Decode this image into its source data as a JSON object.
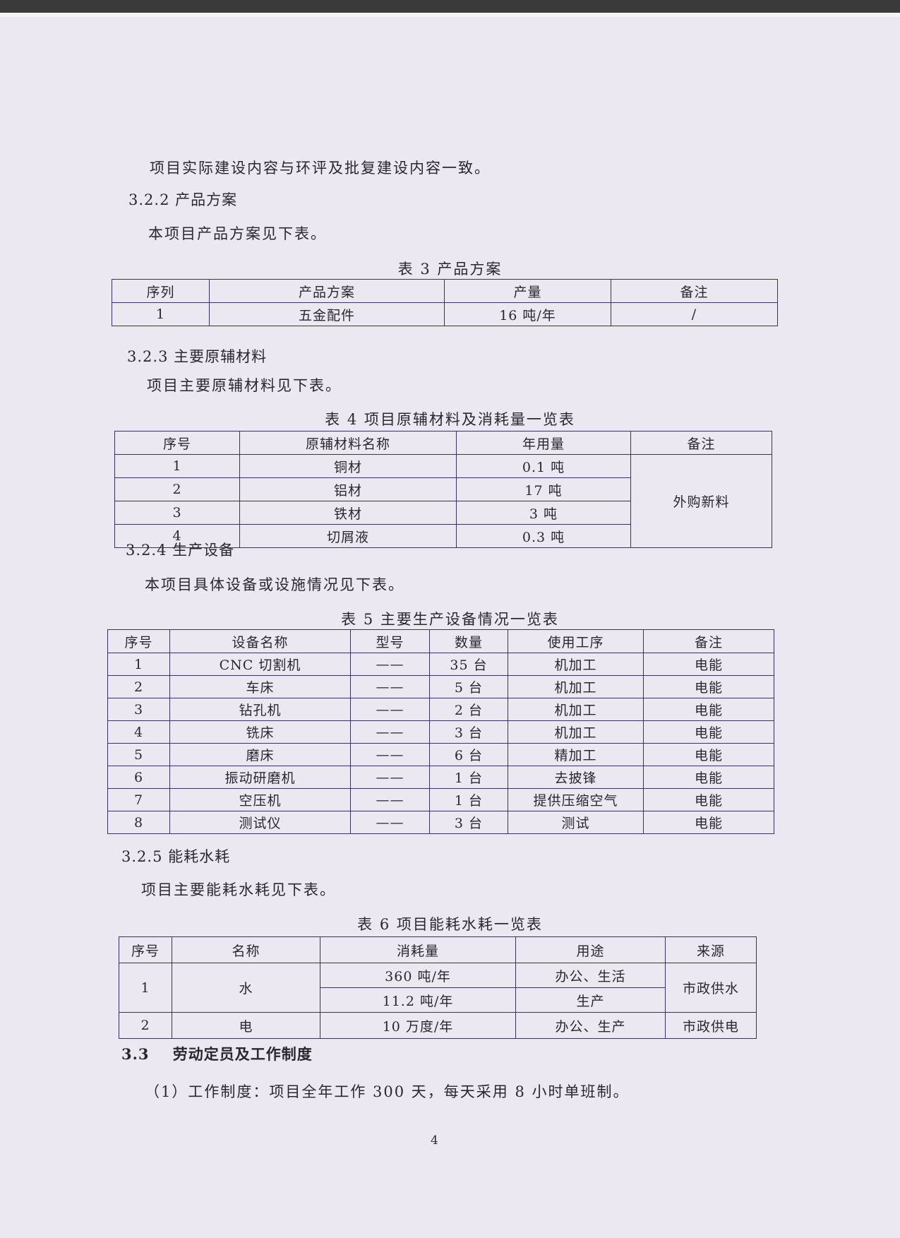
{
  "paragraphs": {
    "p1": "项目实际建设内容与环评及批复建设内容一致。",
    "s322": "3.2.2  产品方案",
    "p2": "本项目产品方案见下表。",
    "s323": "3.2.3  主要原辅材料",
    "p3": "项目主要原辅材料见下表。",
    "s324": "3.2.4  生产设备",
    "p4": "本项目具体设备或设施情况见下表。",
    "s325": "3.2.5  能耗水耗",
    "p5": "项目主要能耗水耗见下表。",
    "s33": "3.3    劳动定员及工作制度",
    "p6": "（1）工作制度：项目全年工作 300 天，每天采用 8 小时单班制。"
  },
  "table3": {
    "caption": "表 3   产品方案",
    "headers": [
      "序列",
      "产品方案",
      "产量",
      "备注"
    ],
    "rows": [
      [
        "1",
        "五金配件",
        "16 吨/年",
        "/"
      ]
    ]
  },
  "table4": {
    "caption": "表 4   项目原辅材料及消耗量一览表",
    "headers": [
      "序号",
      "原辅材料名称",
      "年用量",
      "备注"
    ],
    "rows": [
      [
        "1",
        "铜材",
        "0.1 吨"
      ],
      [
        "2",
        "铝材",
        "17 吨"
      ],
      [
        "3",
        "铁材",
        "3 吨"
      ],
      [
        "4",
        "切屑液",
        "0.3 吨"
      ]
    ],
    "remark": "外购新料"
  },
  "table5": {
    "caption": "表 5   主要生产设备情况一览表",
    "headers": [
      "序号",
      "设备名称",
      "型号",
      "数量",
      "使用工序",
      "备注"
    ],
    "rows": [
      [
        "1",
        "CNC 切割机",
        "——",
        "35 台",
        "机加工",
        "电能"
      ],
      [
        "2",
        "车床",
        "——",
        "5 台",
        "机加工",
        "电能"
      ],
      [
        "3",
        "钻孔机",
        "——",
        "2 台",
        "机加工",
        "电能"
      ],
      [
        "4",
        "铣床",
        "——",
        "3 台",
        "机加工",
        "电能"
      ],
      [
        "5",
        "磨床",
        "——",
        "6 台",
        "精加工",
        "电能"
      ],
      [
        "6",
        "振动研磨机",
        "——",
        "1 台",
        "去披锋",
        "电能"
      ],
      [
        "7",
        "空压机",
        "——",
        "1 台",
        "提供压缩空气",
        "电能"
      ],
      [
        "8",
        "测试仪",
        "——",
        "3 台",
        "测试",
        "电能"
      ]
    ]
  },
  "table6": {
    "caption": "表 6   项目能耗水耗一览表",
    "headers": [
      "序号",
      "名称",
      "消耗量",
      "用途",
      "来源"
    ],
    "water": {
      "no": "1",
      "name": "水",
      "amount1": "360 吨/年",
      "use1": "办公、生活",
      "amount2": "11.2 吨/年",
      "use2": "生产",
      "source": "市政供水"
    },
    "power": {
      "no": "2",
      "name": "电",
      "amount": "10 万度/年",
      "use": "办公、生产",
      "source": "市政供电"
    }
  },
  "page_number": "4"
}
